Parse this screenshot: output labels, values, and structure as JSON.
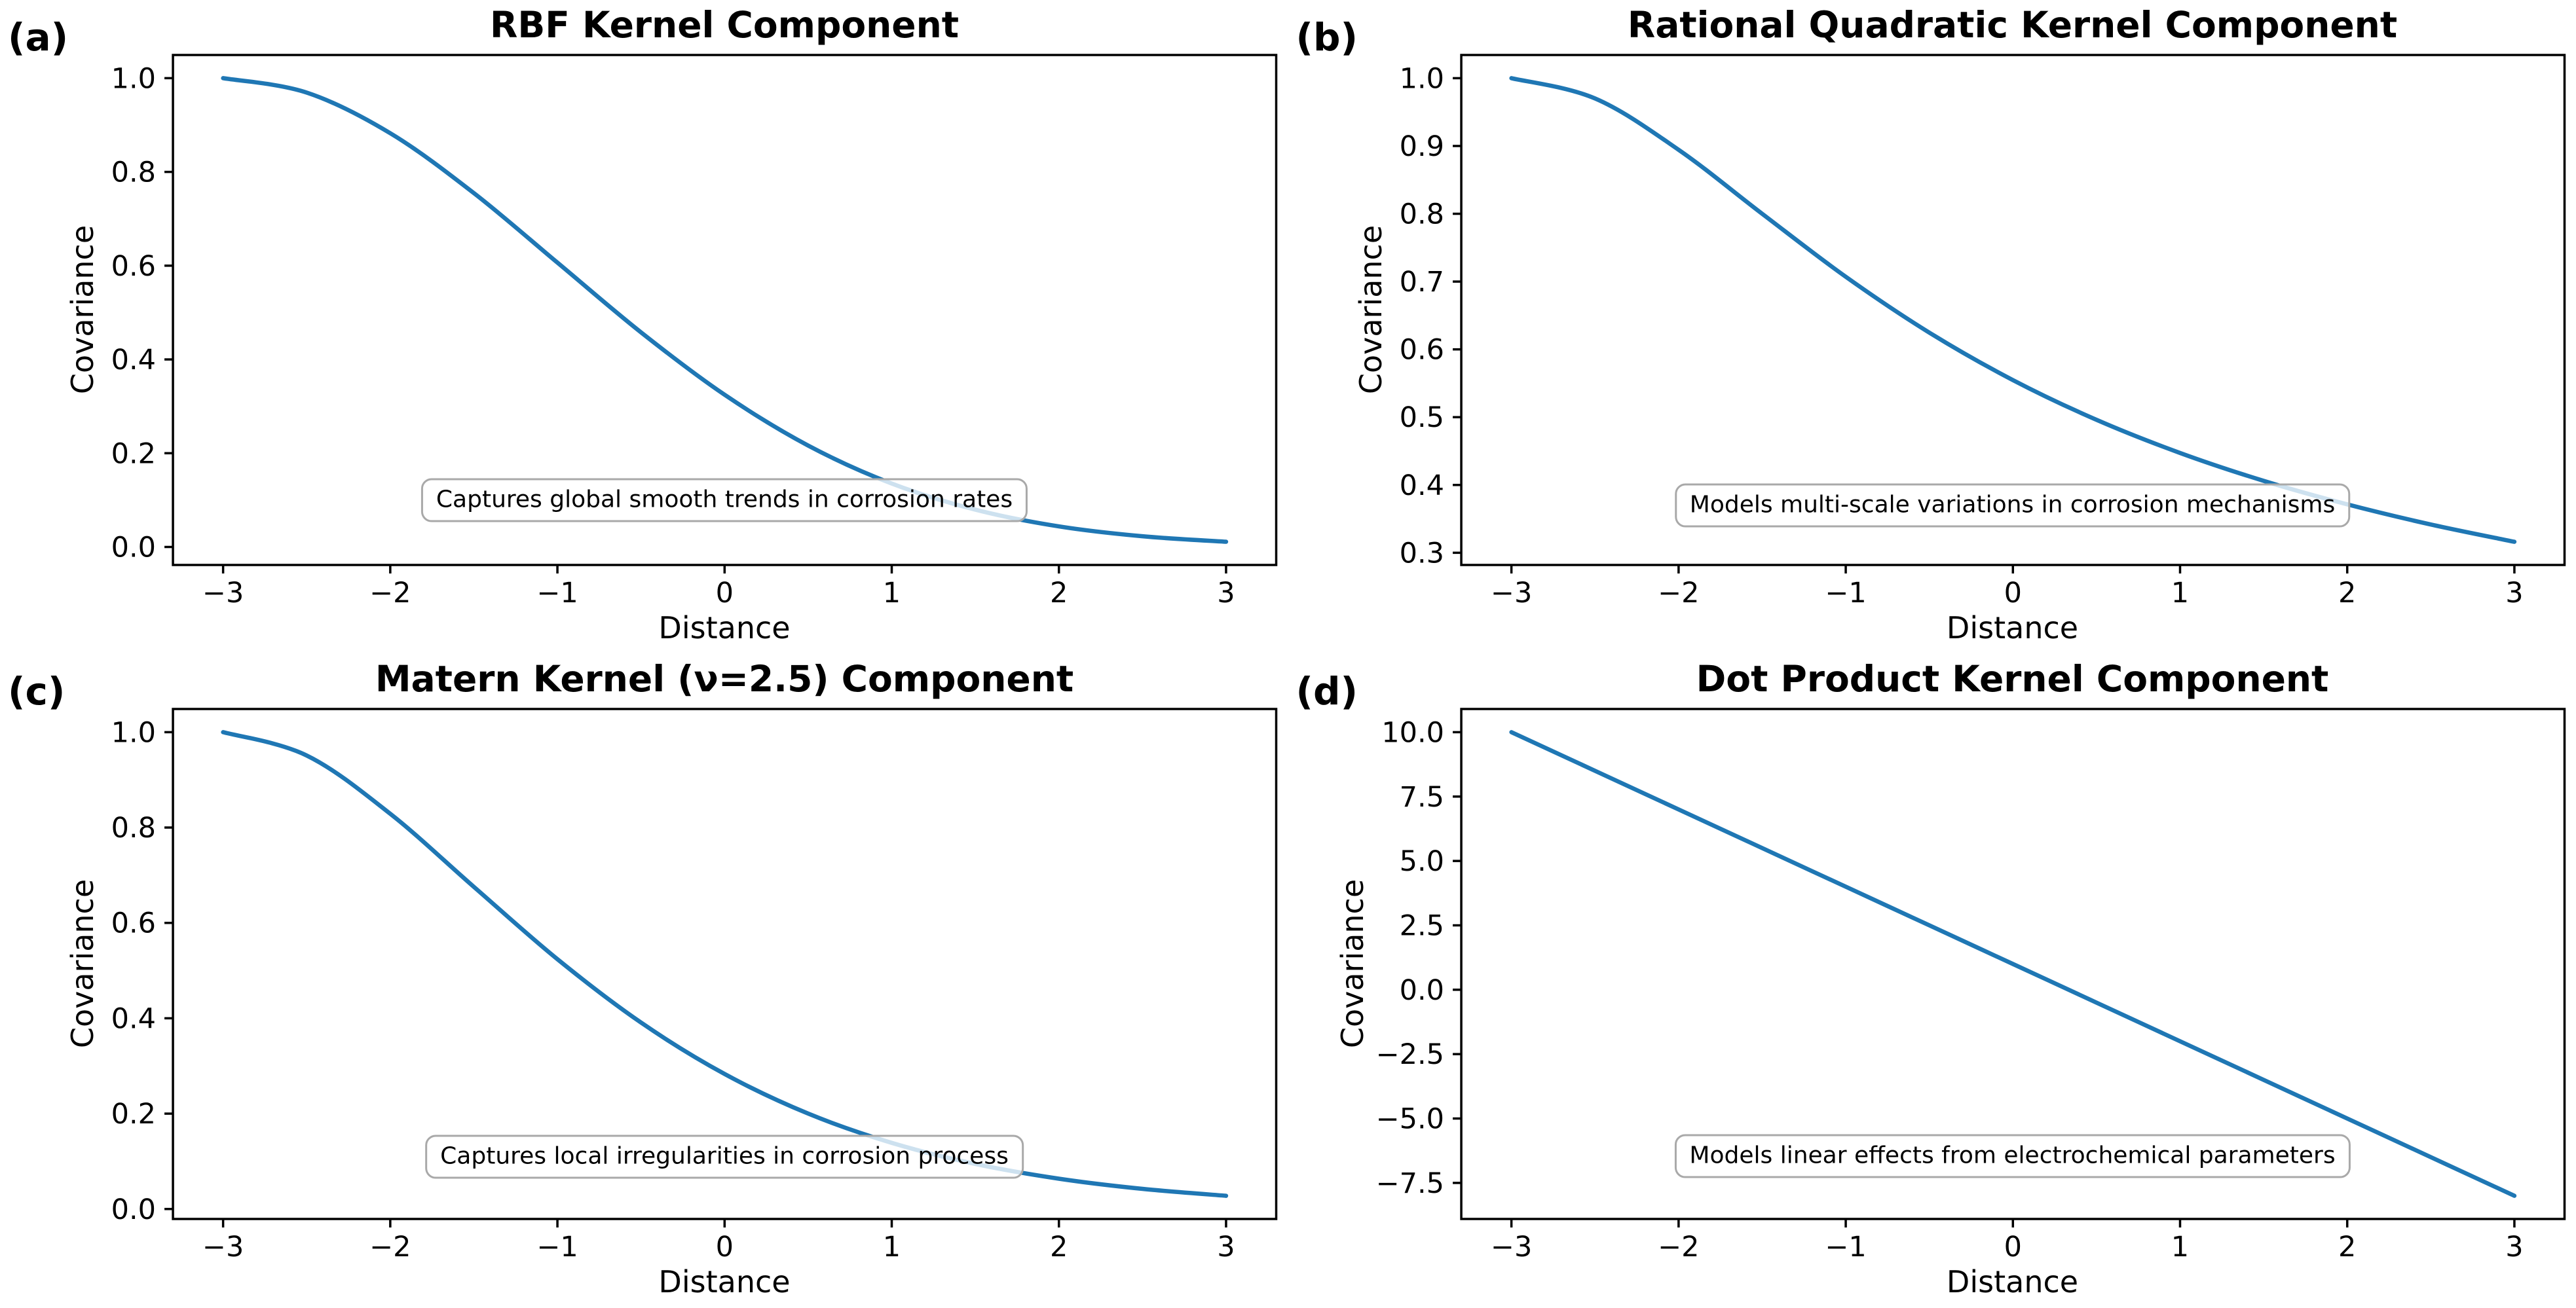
{
  "figure": {
    "background": "#ffffff",
    "annotation_border_color": "#a9a9a9",
    "spine_color": "#000000"
  },
  "chart_data": [
    {
      "type": "line",
      "panel_label": "(a)",
      "title": "RBF Kernel Component",
      "xlabel": "Distance",
      "ylabel": "Covariance",
      "line_color": "#1f77b4",
      "xlim": [
        -3.3,
        3.3
      ],
      "ylim": [
        -0.0384,
        1.0494
      ],
      "xticks": [
        -3,
        -2,
        -1,
        0,
        1,
        2,
        3
      ],
      "xtick_labels": [
        "−3",
        "−2",
        "−1",
        "0",
        "1",
        "2",
        "3"
      ],
      "yticks": [
        0.0,
        0.2,
        0.4,
        0.6,
        0.8,
        1.0
      ],
      "ytick_labels": [
        "0.0",
        "0.2",
        "0.4",
        "0.6",
        "0.8",
        "1.0"
      ],
      "x": [
        -3,
        -2.5,
        -2,
        -1.5,
        -1,
        -0.5,
        0,
        0.5,
        1,
        1.5,
        2,
        2.5,
        3
      ],
      "y": [
        1.0,
        0.9692,
        0.8825,
        0.7548,
        0.6065,
        0.4578,
        0.3247,
        0.2163,
        0.1353,
        0.0796,
        0.0439,
        0.0228,
        0.0111
      ],
      "annotation": {
        "text": "Captures global smooth trends in corrosion rates",
        "x": 0,
        "y": 0.1
      }
    },
    {
      "type": "line",
      "panel_label": "(b)",
      "title": "Rational Quadratic Kernel Component",
      "xlabel": "Distance",
      "ylabel": "Covariance",
      "line_color": "#1f77b4",
      "xlim": [
        -3.3,
        3.3
      ],
      "ylim": [
        0.282,
        1.0342
      ],
      "xticks": [
        -3,
        -2,
        -1,
        0,
        1,
        2,
        3
      ],
      "xtick_labels": [
        "−3",
        "−2",
        "−1",
        "0",
        "1",
        "2",
        "3"
      ],
      "yticks": [
        0.3,
        0.4,
        0.5,
        0.6,
        0.7,
        0.8,
        0.9,
        1.0
      ],
      "ytick_labels": [
        "0.3",
        "0.4",
        "0.5",
        "0.6",
        "0.7",
        "0.8",
        "0.9",
        "1.0"
      ],
      "x": [
        -3,
        -2.5,
        -2,
        -1.5,
        -1,
        -0.5,
        0,
        0.5,
        1,
        1.5,
        2,
        2.5,
        3
      ],
      "y": [
        1.0,
        0.9701,
        0.8944,
        0.8,
        0.7071,
        0.6247,
        0.5547,
        0.4961,
        0.4472,
        0.4061,
        0.3714,
        0.3417,
        0.3162
      ],
      "annotation": {
        "text": "Models multi-scale variations in corrosion mechanisms",
        "x": 0,
        "y": 0.37
      }
    },
    {
      "type": "line",
      "panel_label": "(c)",
      "title": "Matern Kernel (ν=2.5) Component",
      "xlabel": "Distance",
      "ylabel": "Covariance",
      "line_color": "#1f77b4",
      "xlim": [
        -3.3,
        3.3
      ],
      "ylim": [
        -0.0209,
        1.0486
      ],
      "xticks": [
        -3,
        -2,
        -1,
        0,
        1,
        2,
        3
      ],
      "xtick_labels": [
        "−3",
        "−2",
        "−1",
        "0",
        "1",
        "2",
        "3"
      ],
      "yticks": [
        0.0,
        0.2,
        0.4,
        0.6,
        0.8,
        1.0
      ],
      "ytick_labels": [
        "0.0",
        "0.2",
        "0.4",
        "0.6",
        "0.8",
        "1.0"
      ],
      "x": [
        -3,
        -2.5,
        -2,
        -1.5,
        -1,
        -0.5,
        0,
        0.5,
        1,
        1.5,
        2,
        2.5,
        3
      ],
      "y": [
        1.0,
        0.9511,
        0.8288,
        0.6756,
        0.5239,
        0.391,
        0.2832,
        0.2001,
        0.1387,
        0.0945,
        0.0635,
        0.0422,
        0.0277
      ],
      "annotation": {
        "text": "Captures local irregularities in corrosion process",
        "x": 0,
        "y": 0.11
      }
    },
    {
      "type": "line",
      "panel_label": "(d)",
      "title": "Dot Product Kernel Component",
      "xlabel": "Distance",
      "ylabel": "Covariance",
      "line_color": "#1f77b4",
      "xlim": [
        -3.3,
        3.3
      ],
      "ylim": [
        -8.9,
        10.9
      ],
      "xticks": [
        -3,
        -2,
        -1,
        0,
        1,
        2,
        3
      ],
      "xtick_labels": [
        "−3",
        "−2",
        "−1",
        "0",
        "1",
        "2",
        "3"
      ],
      "yticks": [
        -7.5,
        -5.0,
        -2.5,
        0.0,
        2.5,
        5.0,
        7.5,
        10.0
      ],
      "ytick_labels": [
        "−7.5",
        "−5.0",
        "−2.5",
        "0.0",
        "2.5",
        "5.0",
        "7.5",
        "10.0"
      ],
      "x": [
        -3,
        -2.5,
        -2,
        -1.5,
        -1,
        -0.5,
        0,
        0.5,
        1,
        1.5,
        2,
        2.5,
        3
      ],
      "y": [
        10,
        8.5,
        7,
        5.5,
        4,
        2.5,
        1,
        -0.5,
        -2,
        -3.5,
        -5,
        -6.5,
        -8
      ],
      "annotation": {
        "text": "Models linear effects from electrochemical parameters",
        "x": 0,
        "y": -6.45
      }
    }
  ]
}
